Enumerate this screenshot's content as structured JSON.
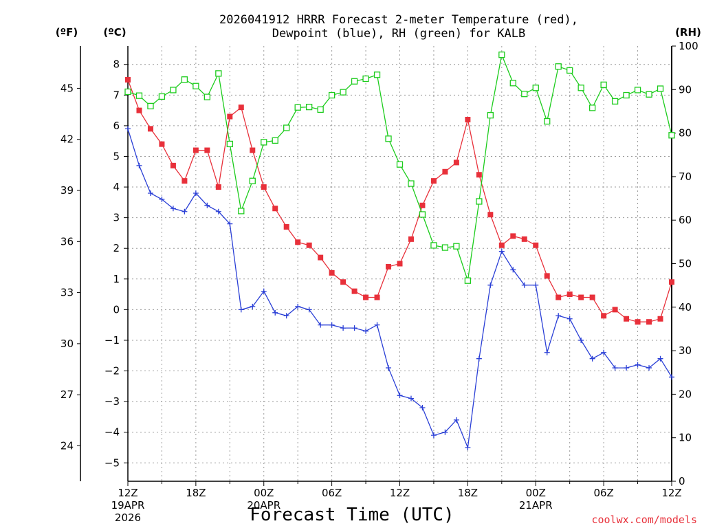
{
  "title_line1": "2026041912 HRRR Forecast 2-meter Temperature (red),",
  "title_line2": "Dewpoint (blue), RH (green) for KALB",
  "unit_f": "(ºF)",
  "unit_c": "(ºC)",
  "unit_rh": "(RH)",
  "xlabel": "Forecast Time (UTC)",
  "credit": "coolwx.com/models",
  "colors": {
    "temperature": "#e8303a",
    "dewpoint": "#2a3fd6",
    "rh": "#1ccc1c",
    "grid": "#9a9a9a",
    "axis": "#000000"
  },
  "chart_data": {
    "type": "line",
    "title": "2026041912 HRRR Forecast 2-meter Temperature (red), Dewpoint (blue), RH (green) for KALB",
    "xlabel": "Forecast Time (UTC)",
    "x_unit": "forecast hour from 2026041912",
    "xlim": [
      0,
      48
    ],
    "ylim_c": [
      -5.6,
      8.6
    ],
    "ylim_rh": [
      0,
      100
    ],
    "grid": true,
    "x_ticks": [
      {
        "hour": 0,
        "lines": [
          "12Z",
          "19APR",
          "2026"
        ]
      },
      {
        "hour": 6,
        "lines": [
          "18Z"
        ]
      },
      {
        "hour": 12,
        "lines": [
          "00Z",
          "20APR"
        ]
      },
      {
        "hour": 18,
        "lines": [
          "06Z"
        ]
      },
      {
        "hour": 24,
        "lines": [
          "12Z"
        ]
      },
      {
        "hour": 30,
        "lines": [
          "18Z"
        ]
      },
      {
        "hour": 36,
        "lines": [
          "00Z",
          "21APR"
        ]
      },
      {
        "hour": 42,
        "lines": [
          "06Z"
        ]
      },
      {
        "hour": 48,
        "lines": [
          "12Z"
        ]
      }
    ],
    "y_ticks_c": [
      "8",
      "7",
      "6",
      "5",
      "4",
      "3",
      "2",
      "1",
      "0",
      "−1",
      "−2",
      "−3",
      "−4",
      "−5"
    ],
    "y_ticks_c_values": [
      8,
      7,
      6,
      5,
      4,
      3,
      2,
      1,
      0,
      -1,
      -2,
      -3,
      -4,
      -5
    ],
    "y_ticks_f": [
      "45",
      "42",
      "39",
      "36",
      "33",
      "30",
      "27",
      "24"
    ],
    "y_ticks_f_values": [
      45,
      42,
      39,
      36,
      33,
      30,
      27,
      24
    ],
    "y_ticks_rh": [
      "100",
      "90",
      "80",
      "70",
      "60",
      "50",
      "40",
      "30",
      "20",
      "10",
      "0"
    ],
    "y_ticks_rh_values": [
      100,
      90,
      80,
      70,
      60,
      50,
      40,
      30,
      20,
      10,
      0
    ],
    "series": [
      {
        "key": "temperature",
        "axis": "c",
        "marker": "filled-square",
        "values": [
          7.5,
          6.5,
          5.9,
          5.4,
          4.7,
          4.2,
          5.2,
          5.2,
          4.0,
          6.3,
          6.6,
          5.2,
          4.0,
          3.3,
          2.7,
          2.2,
          2.1,
          1.7,
          1.2,
          0.9,
          0.6,
          0.4,
          0.4,
          1.4,
          1.5,
          2.3,
          3.4,
          4.2,
          4.5,
          4.8,
          6.2,
          4.4,
          3.1,
          2.1,
          2.4,
          2.3,
          2.1,
          1.1,
          0.4,
          0.5,
          0.4,
          0.4,
          -0.2,
          0.0,
          -0.3,
          -0.4,
          -0.4,
          -0.3,
          0.9
        ]
      },
      {
        "key": "dewpoint",
        "axis": "c",
        "marker": "plus",
        "values": [
          5.9,
          4.7,
          3.8,
          3.6,
          3.3,
          3.2,
          3.8,
          3.4,
          3.2,
          2.8,
          0.0,
          0.1,
          0.6,
          -0.1,
          -0.2,
          0.1,
          0.0,
          -0.5,
          -0.5,
          -0.6,
          -0.6,
          -0.7,
          -0.5,
          -1.9,
          -2.8,
          -2.9,
          -3.2,
          -4.1,
          -4.0,
          -3.6,
          -4.5,
          -1.6,
          0.8,
          1.9,
          1.3,
          0.8,
          0.8,
          -1.4,
          -0.2,
          -0.3,
          -1.0,
          -1.6,
          -1.4,
          -1.9,
          -1.9,
          -1.8,
          -1.9,
          -1.6,
          -2.2
        ]
      },
      {
        "key": "rh",
        "axis": "rh",
        "marker": "open-square",
        "values": [
          89.5,
          88.6,
          86.2,
          88.4,
          89.9,
          92.3,
          90.8,
          88.3,
          93.7,
          77.5,
          62.1,
          69.0,
          77.9,
          78.3,
          81.2,
          85.9,
          86.0,
          85.4,
          88.7,
          89.4,
          91.9,
          92.5,
          93.4,
          78.7,
          72.8,
          68.4,
          61.3,
          54.2,
          53.7,
          54.0,
          46.1,
          64.3,
          84.1,
          98.0,
          91.5,
          89.0,
          90.4,
          82.7,
          95.3,
          94.4,
          90.4,
          85.8,
          91.1,
          87.3,
          88.7,
          89.9,
          88.9,
          90.2,
          79.5
        ]
      }
    ]
  }
}
